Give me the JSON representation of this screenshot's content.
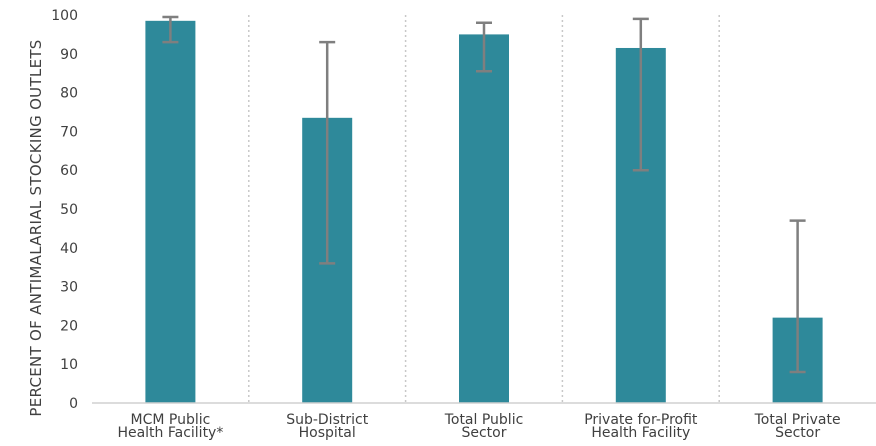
{
  "chart_data": {
    "type": "bar",
    "ylabel": "PERCENT OF ANTIMALARIAL STOCKING OUTLETS",
    "ylim": [
      0,
      100
    ],
    "yticks": [
      0,
      10,
      20,
      30,
      40,
      50,
      60,
      70,
      80,
      90,
      100
    ],
    "categories": [
      [
        "MCM Public",
        "Health Facility*"
      ],
      [
        "Sub-District",
        "Hospital"
      ],
      [
        "Total Public",
        "Sector"
      ],
      [
        "Private for-Profit",
        "Health Facility"
      ],
      [
        "Total Private",
        "Sector"
      ]
    ],
    "values": [
      98.5,
      73.5,
      95,
      91.5,
      22
    ],
    "error_low": [
      93,
      36,
      85.5,
      60,
      8
    ],
    "error_high": [
      99.5,
      93,
      98,
      99,
      47
    ],
    "grid": "vertical-dotted-separators",
    "colors": {
      "bar": "#2e899a",
      "error": "#7f7f7f",
      "separator": "#c8c8c8",
      "axis": "#d0d0d0"
    }
  }
}
